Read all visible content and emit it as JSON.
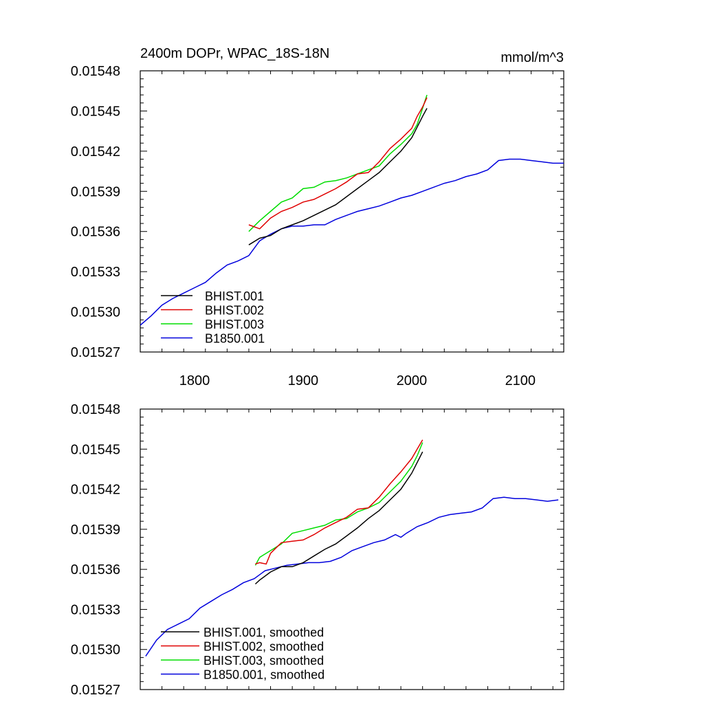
{
  "figure": {
    "title_left": "2400m DOPr, WPAC_18S-18N",
    "title_right": "mmol/m^3"
  },
  "colors": {
    "BHIST.001": "#000000",
    "BHIST.002": "#e00000",
    "BHIST.003": "#00dd00",
    "B1850.001": "#0000dd"
  },
  "chart_data": [
    {
      "type": "line",
      "title": "2400m DOPr, WPAC_18S-18N",
      "units_label": "mmol/m^3",
      "xlim": [
        1750,
        2140
      ],
      "ylim": [
        0.01527,
        0.01548
      ],
      "x_ticks": [
        1800,
        1900,
        2000,
        2100
      ],
      "x_tick_labels": [
        "1800",
        "1900",
        "2000",
        "2100"
      ],
      "y_ticks": [
        0.01527,
        0.0153,
        0.01533,
        0.01536,
        0.01539,
        0.01542,
        0.01545,
        0.01548
      ],
      "y_tick_labels": [
        "0.01527",
        "0.01530",
        "0.01533",
        "0.01536",
        "0.01539",
        "0.01542",
        "0.01545",
        "0.01548"
      ],
      "legend_position": "bottom-left",
      "series": [
        {
          "name": "BHIST.001",
          "x": [
            1850,
            1860,
            1870,
            1880,
            1890,
            1900,
            1910,
            1920,
            1930,
            1940,
            1950,
            1960,
            1970,
            1980,
            1990,
            2000,
            2005,
            2010,
            2014
          ],
          "values": [
            0.01535,
            0.015355,
            0.015357,
            0.015362,
            0.015365,
            0.015368,
            0.015372,
            0.015376,
            0.01538,
            0.015386,
            0.015392,
            0.015398,
            0.015404,
            0.015412,
            0.01542,
            0.01543,
            0.015438,
            0.015446,
            0.015452
          ]
        },
        {
          "name": "BHIST.002",
          "x": [
            1850,
            1860,
            1870,
            1880,
            1890,
            1900,
            1910,
            1920,
            1930,
            1940,
            1950,
            1960,
            1970,
            1980,
            1990,
            2000,
            2005,
            2010,
            2014
          ],
          "values": [
            0.015365,
            0.015362,
            0.01537,
            0.015375,
            0.015378,
            0.015382,
            0.015384,
            0.015388,
            0.015392,
            0.015397,
            0.015403,
            0.015404,
            0.015412,
            0.015422,
            0.015429,
            0.015437,
            0.015446,
            0.015453,
            0.01546
          ]
        },
        {
          "name": "BHIST.003",
          "x": [
            1850,
            1860,
            1870,
            1880,
            1890,
            1900,
            1910,
            1920,
            1930,
            1940,
            1950,
            1960,
            1970,
            1980,
            1990,
            2000,
            2005,
            2010,
            2014
          ],
          "values": [
            0.01536,
            0.015368,
            0.015375,
            0.015382,
            0.015385,
            0.015392,
            0.015393,
            0.015397,
            0.015398,
            0.0154,
            0.015403,
            0.015406,
            0.015409,
            0.015418,
            0.015425,
            0.015433,
            0.01544,
            0.015452,
            0.015462
          ]
        },
        {
          "name": "B1850.001",
          "x": [
            1750,
            1760,
            1770,
            1780,
            1790,
            1800,
            1810,
            1820,
            1830,
            1840,
            1850,
            1860,
            1870,
            1880,
            1890,
            1900,
            1910,
            1920,
            1930,
            1940,
            1950,
            1960,
            1970,
            1980,
            1990,
            2000,
            2010,
            2020,
            2030,
            2040,
            2050,
            2060,
            2070,
            2080,
            2090,
            2100,
            2110,
            2120,
            2130,
            2140
          ],
          "values": [
            0.01529,
            0.015297,
            0.015305,
            0.01531,
            0.015314,
            0.015318,
            0.015322,
            0.015329,
            0.015335,
            0.015338,
            0.015342,
            0.015353,
            0.015358,
            0.015362,
            0.015364,
            0.015364,
            0.015365,
            0.015365,
            0.015369,
            0.015372,
            0.015375,
            0.015377,
            0.015379,
            0.015382,
            0.015385,
            0.015387,
            0.01539,
            0.015393,
            0.015396,
            0.015398,
            0.015401,
            0.015403,
            0.015406,
            0.015413,
            0.015414,
            0.015414,
            0.015413,
            0.015412,
            0.015411,
            0.015411
          ]
        }
      ]
    },
    {
      "type": "line",
      "xlim": [
        1750,
        2140
      ],
      "ylim": [
        0.01527,
        0.01548
      ],
      "x_ticks": [
        1800,
        1900,
        2000,
        2100
      ],
      "y_ticks": [
        0.01527,
        0.0153,
        0.01533,
        0.01536,
        0.01539,
        0.01542,
        0.01545,
        0.01548
      ],
      "y_tick_labels": [
        "0.01527",
        "0.01530",
        "0.01533",
        "0.01536",
        "0.01539",
        "0.01542",
        "0.01545",
        "0.01548"
      ],
      "legend_position": "bottom-left",
      "series": [
        {
          "name": "BHIST.001, smoothed",
          "x": [
            1856,
            1860,
            1870,
            1880,
            1890,
            1900,
            1910,
            1920,
            1930,
            1940,
            1950,
            1960,
            1970,
            1980,
            1990,
            2000,
            2005,
            2010
          ],
          "values": [
            0.015349,
            0.015352,
            0.015358,
            0.015362,
            0.015362,
            0.015365,
            0.01537,
            0.015375,
            0.015379,
            0.015385,
            0.015391,
            0.015398,
            0.015404,
            0.015412,
            0.01542,
            0.015432,
            0.01544,
            0.015448
          ]
        },
        {
          "name": "BHIST.002, smoothed",
          "x": [
            1856,
            1860,
            1866,
            1870,
            1880,
            1890,
            1900,
            1910,
            1920,
            1930,
            1940,
            1950,
            1960,
            1970,
            1980,
            1990,
            2000,
            2005,
            2010
          ],
          "values": [
            0.015364,
            0.015365,
            0.015364,
            0.015372,
            0.01538,
            0.015381,
            0.015382,
            0.015386,
            0.015391,
            0.015395,
            0.015399,
            0.015405,
            0.015406,
            0.015414,
            0.015424,
            0.015433,
            0.015443,
            0.01545,
            0.015457
          ]
        },
        {
          "name": "BHIST.003, smoothed",
          "x": [
            1856,
            1860,
            1870,
            1880,
            1890,
            1900,
            1910,
            1920,
            1930,
            1940,
            1950,
            1960,
            1970,
            1980,
            1990,
            2000,
            2005,
            2010
          ],
          "values": [
            0.015363,
            0.015369,
            0.015374,
            0.015379,
            0.015387,
            0.015389,
            0.015391,
            0.015393,
            0.015397,
            0.015398,
            0.015403,
            0.015406,
            0.01541,
            0.015418,
            0.015426,
            0.015437,
            0.015445,
            0.015455
          ]
        },
        {
          "name": "B1850.001, smoothed",
          "x": [
            1755,
            1765,
            1775,
            1785,
            1795,
            1805,
            1815,
            1825,
            1835,
            1845,
            1855,
            1865,
            1875,
            1885,
            1895,
            1905,
            1915,
            1925,
            1935,
            1945,
            1955,
            1965,
            1975,
            1985,
            1990,
            1995,
            2005,
            2015,
            2025,
            2035,
            2045,
            2055,
            2065,
            2075,
            2085,
            2095,
            2105,
            2115,
            2125,
            2135
          ],
          "values": [
            0.015295,
            0.015307,
            0.015315,
            0.015319,
            0.015323,
            0.015331,
            0.015336,
            0.015341,
            0.015345,
            0.01535,
            0.015353,
            0.015359,
            0.015361,
            0.015363,
            0.015364,
            0.015365,
            0.015365,
            0.015366,
            0.015369,
            0.015374,
            0.015377,
            0.01538,
            0.015382,
            0.015386,
            0.015384,
            0.015387,
            0.015392,
            0.015395,
            0.015399,
            0.015401,
            0.015402,
            0.015403,
            0.015406,
            0.015413,
            0.015414,
            0.015413,
            0.015413,
            0.015412,
            0.015411,
            0.015412
          ]
        }
      ]
    }
  ]
}
